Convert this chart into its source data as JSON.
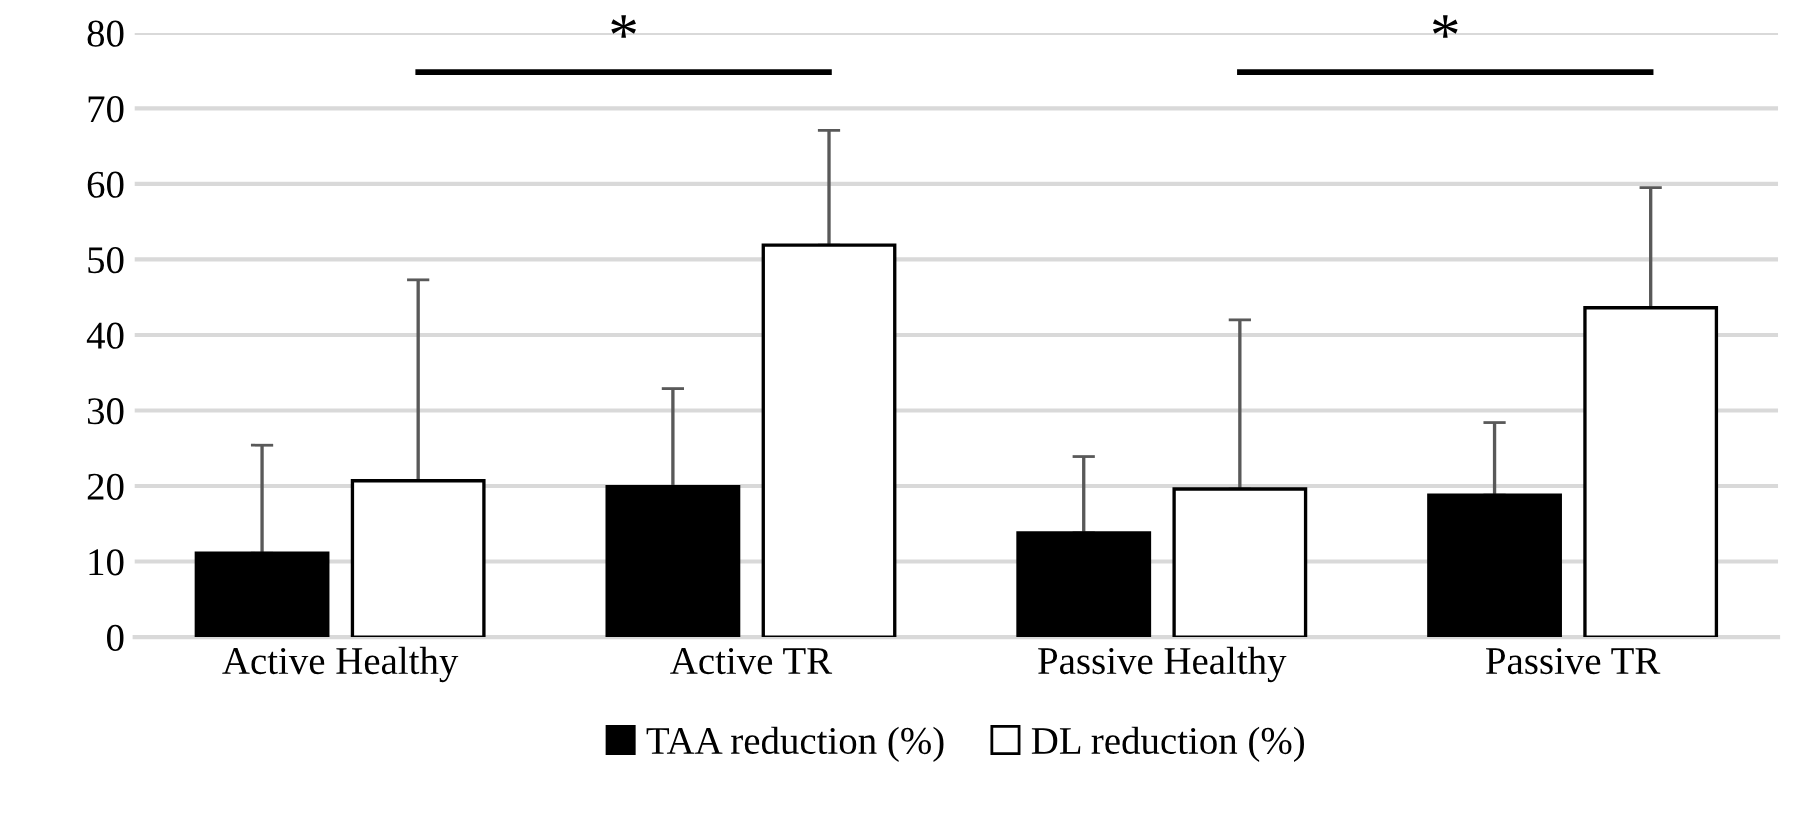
{
  "chart_data": {
    "type": "bar",
    "categories": [
      "Active Healthy",
      "Active TR",
      "Passive Healthy",
      "Passive TR"
    ],
    "series": [
      {
        "name": "TAA reduction (%)",
        "color": "#000000",
        "values": [
          11.1,
          19.9,
          13.8,
          18.8
        ],
        "errors": [
          [
            11.1,
            25.4
          ],
          [
            19.9,
            32.9
          ],
          [
            13.8,
            23.9
          ],
          [
            18.8,
            28.4
          ]
        ]
      },
      {
        "name": "DL reduction (%)",
        "color": "#ffffff",
        "values": [
          20.7,
          51.9,
          19.6,
          43.6
        ],
        "errors": [
          [
            20.7,
            47.3
          ],
          [
            51.9,
            67.1
          ],
          [
            19.6,
            42.0
          ],
          [
            43.6,
            59.5
          ]
        ]
      }
    ],
    "annotations": [
      "*",
      "*"
    ],
    "ylim": [
      0,
      80
    ],
    "yticks": [
      0,
      10,
      20,
      30,
      40,
      50,
      60,
      70,
      80
    ],
    "grid": "y",
    "legend": "bottom"
  }
}
